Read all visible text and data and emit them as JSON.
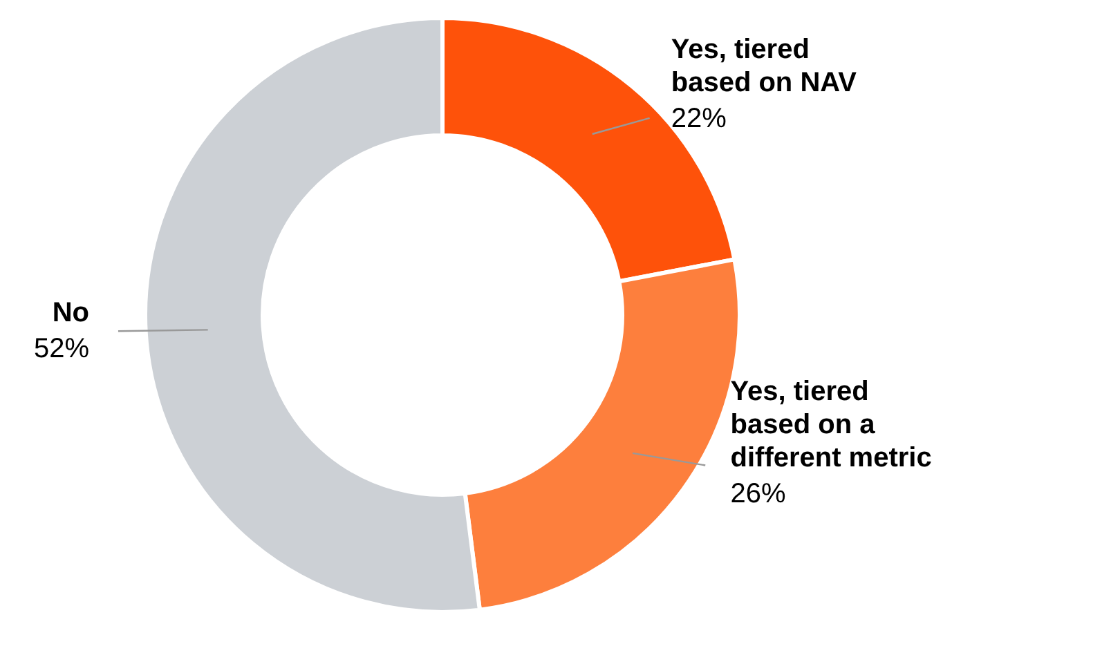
{
  "chart_data": {
    "type": "donut",
    "categories": [
      "Yes, tiered based on NAV",
      "Yes, tiered based on a different metric",
      "No"
    ],
    "values": [
      22,
      26,
      52
    ],
    "colors": [
      "#fe520a",
      "#fd7f3d",
      "#ccd0d5"
    ],
    "value_labels": [
      "22%",
      "26%",
      "52%"
    ]
  }
}
